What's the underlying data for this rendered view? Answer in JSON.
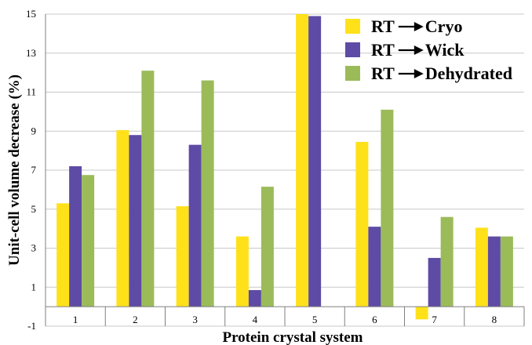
{
  "chart_data": {
    "type": "bar",
    "title": "",
    "xlabel": "Protein crystal system",
    "ylabel": "Unit-cell volume decrease (%)",
    "ylim": [
      -1,
      15
    ],
    "yticks": [
      -1,
      1,
      3,
      5,
      7,
      9,
      11,
      13,
      15
    ],
    "categories": [
      "1",
      "2",
      "3",
      "4",
      "5",
      "6",
      "7",
      "8"
    ],
    "grid": true,
    "legend_position": "top-right",
    "series": [
      {
        "name": "RT → Cryo",
        "legend_prefix": "RT",
        "legend_suffix": "Cryo",
        "color": "#FFE11A",
        "values": [
          5.3,
          9.05,
          5.15,
          3.6,
          15.0,
          8.45,
          -0.65,
          4.05
        ]
      },
      {
        "name": "RT → Wick",
        "legend_prefix": "RT",
        "legend_suffix": "Wick",
        "color": "#5E4BA5",
        "values": [
          7.2,
          8.8,
          8.3,
          0.85,
          14.9,
          4.1,
          2.5,
          3.6
        ]
      },
      {
        "name": "RT → Dehydrated",
        "legend_prefix": "RT",
        "legend_suffix": "Dehydrated",
        "color": "#9BBB59",
        "values": [
          6.75,
          12.1,
          11.6,
          6.15,
          null,
          10.1,
          4.6,
          3.6
        ]
      }
    ]
  }
}
